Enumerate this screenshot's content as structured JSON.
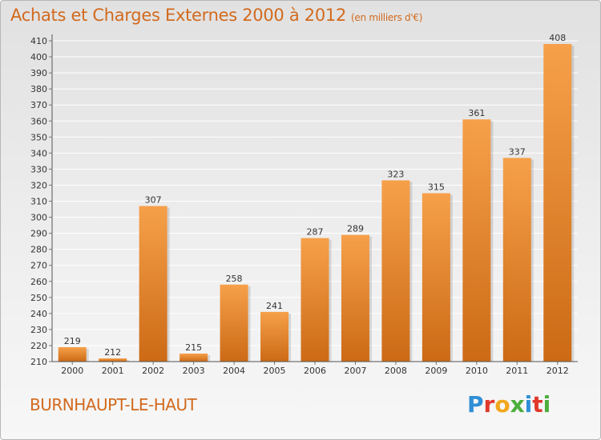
{
  "header": {
    "title": "Achats et Charges Externes 2000 à 2012",
    "unit": "(en milliers d'€)"
  },
  "footer": {
    "commune": "BURNHAUPT-LE-HAUT",
    "logo_text": "Proxiti",
    "logo_colors": [
      "#2f8fd6",
      "#e0392b",
      "#f2a61b",
      "#4cae3c",
      "#2f8fd6",
      "#e0392b",
      "#4cae3c"
    ]
  },
  "colors": {
    "bar_light": "#f6a04a",
    "bar_dark": "#cc6a16",
    "accent": "#d26a1e",
    "grid": "#ffffff",
    "axis": "#333333"
  },
  "chart_data": {
    "type": "bar",
    "title": "Achats et Charges Externes 2000 à 2012",
    "subtitle": "(en milliers d'€)",
    "xlabel": "",
    "ylabel": "",
    "categories": [
      "2000",
      "2001",
      "2002",
      "2003",
      "2004",
      "2005",
      "2006",
      "2007",
      "2008",
      "2009",
      "2010",
      "2011",
      "2012"
    ],
    "values": [
      219,
      212,
      307,
      215,
      258,
      241,
      287,
      289,
      323,
      315,
      361,
      337,
      408
    ],
    "ylim": [
      210,
      410
    ],
    "ytick_step": 10,
    "grid": true,
    "legend": "none",
    "data_labels": true
  }
}
